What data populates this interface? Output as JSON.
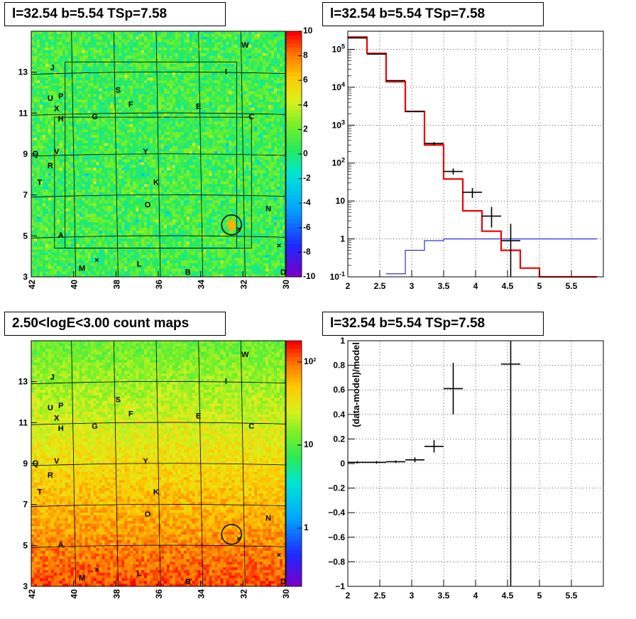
{
  "panels": {
    "tl_title": "l=32.54 b=5.54 TSp=7.58",
    "tr_title": "l=32.54 b=5.54 TSp=7.58",
    "bl_title": "2.50<logE<3.00 count maps",
    "br_title": "l=32.54 b=5.54 TSp=7.58"
  },
  "chart_data": [
    {
      "type": "heatmap",
      "name": "residual_map",
      "x_ticks": [
        "42",
        "40",
        "38",
        "36",
        "34",
        "32",
        "30"
      ],
      "y_ticks": [
        "3",
        "5",
        "7",
        "9",
        "11",
        "13"
      ],
      "xlim": [
        42,
        30
      ],
      "ylim": [
        3,
        15
      ],
      "colorbar_ticks": [
        "10",
        "8",
        "6",
        "4",
        "2",
        "0",
        "-2",
        "-4",
        "-6",
        "-8",
        "-10"
      ],
      "colorbar_range": [
        -10,
        10
      ],
      "sources": [
        {
          "label": "J",
          "l": 41.0,
          "b": 13.1
        },
        {
          "label": "W",
          "l": 31.9,
          "b": 14.2
        },
        {
          "label": "I",
          "l": 32.8,
          "b": 12.9
        },
        {
          "label": "S",
          "l": 37.9,
          "b": 12.0
        },
        {
          "label": "U",
          "l": 41.1,
          "b": 11.6
        },
        {
          "label": "P",
          "l": 40.6,
          "b": 11.7
        },
        {
          "label": "X",
          "l": 40.8,
          "b": 11.1
        },
        {
          "label": "F",
          "l": 37.3,
          "b": 11.3
        },
        {
          "label": "E",
          "l": 34.1,
          "b": 11.2
        },
        {
          "label": "H",
          "l": 40.6,
          "b": 10.6
        },
        {
          "label": "G",
          "l": 39.0,
          "b": 10.7
        },
        {
          "label": "C",
          "l": 31.6,
          "b": 10.7
        },
        {
          "label": "Q",
          "l": 41.8,
          "b": 8.9
        },
        {
          "label": "V",
          "l": 40.8,
          "b": 9.0
        },
        {
          "label": "Y",
          "l": 36.6,
          "b": 9.0
        },
        {
          "label": "R",
          "l": 41.1,
          "b": 8.3
        },
        {
          "label": "T",
          "l": 41.6,
          "b": 7.5
        },
        {
          "label": "K",
          "l": 36.1,
          "b": 7.5
        },
        {
          "label": "O",
          "l": 36.5,
          "b": 6.4
        },
        {
          "label": "N",
          "l": 30.8,
          "b": 6.2
        },
        {
          "label": "A",
          "l": 40.6,
          "b": 4.9
        },
        {
          "label": "M",
          "l": 39.6,
          "b": 3.3
        },
        {
          "label": "L",
          "l": 36.9,
          "b": 3.5
        },
        {
          "label": "B",
          "l": 34.6,
          "b": 3.1
        },
        {
          "label": "D",
          "l": 30.1,
          "b": 3.1
        }
      ],
      "circle": {
        "l": 32.54,
        "b": 5.54
      }
    },
    {
      "type": "line",
      "name": "spectrum",
      "log_y": true,
      "xlim": [
        2,
        6
      ],
      "ylim": [
        0.1,
        300000
      ],
      "x_ticks": [
        "2",
        "2.5",
        "3",
        "3.5",
        "4",
        "4.5",
        "5",
        "5.5"
      ],
      "y_ticks": [
        "10^-1",
        "1",
        "10",
        "10^2",
        "10^3",
        "10^4",
        "10^5"
      ],
      "data_points": [
        {
          "x": 2.15,
          "y": 200000,
          "xerr": 0.15
        },
        {
          "x": 2.45,
          "y": 75000,
          "xerr": 0.15
        },
        {
          "x": 2.75,
          "y": 15000,
          "xerr": 0.15
        },
        {
          "x": 3.05,
          "y": 2300,
          "xerr": 0.15
        },
        {
          "x": 3.35,
          "y": 330,
          "xerr": 0.15,
          "ylo": 300,
          "yhi": 360
        },
        {
          "x": 3.65,
          "y": 60,
          "xerr": 0.15,
          "ylo": 50,
          "yhi": 72
        },
        {
          "x": 3.95,
          "y": 17,
          "xerr": 0.15,
          "ylo": 12,
          "yhi": 22
        },
        {
          "x": 4.25,
          "y": 4,
          "xerr": 0.15,
          "ylo": 2,
          "yhi": 7
        },
        {
          "x": 4.55,
          "y": 0.9,
          "xerr": 0.15,
          "ylo": 0.1,
          "yhi": 2.5
        }
      ],
      "model_red_steps": [
        {
          "x0": 2.0,
          "x1": 2.3,
          "y": 210000
        },
        {
          "x0": 2.3,
          "x1": 2.6,
          "y": 78000
        },
        {
          "x0": 2.6,
          "x1": 2.9,
          "y": 14000
        },
        {
          "x0": 2.9,
          "x1": 3.2,
          "y": 2300
        },
        {
          "x0": 3.2,
          "x1": 3.5,
          "y": 300
        },
        {
          "x0": 3.5,
          "x1": 3.8,
          "y": 38
        },
        {
          "x0": 3.8,
          "x1": 4.1,
          "y": 5.5
        },
        {
          "x0": 4.1,
          "x1": 4.4,
          "y": 1.6
        },
        {
          "x0": 4.4,
          "x1": 4.7,
          "y": 0.5
        },
        {
          "x0": 4.7,
          "x1": 5.0,
          "y": 0.17
        },
        {
          "x0": 5.0,
          "x1": 5.9,
          "y": 0.1
        }
      ],
      "model_blue_steps": [
        {
          "x0": 2.6,
          "x1": 2.9,
          "y": 0.12
        },
        {
          "x0": 2.9,
          "x1": 3.2,
          "y": 0.5
        },
        {
          "x0": 3.2,
          "x1": 3.5,
          "y": 0.9
        },
        {
          "x0": 3.5,
          "x1": 5.9,
          "y": 1.0
        }
      ]
    },
    {
      "type": "heatmap",
      "name": "count_map",
      "x_ticks": [
        "42",
        "40",
        "38",
        "36",
        "34",
        "32",
        "30"
      ],
      "y_ticks": [
        "3",
        "5",
        "7",
        "9",
        "11",
        "13"
      ],
      "xlim": [
        42,
        30
      ],
      "ylim": [
        3,
        15
      ],
      "colorbar_ticks": [
        "10^2",
        "10",
        "1"
      ],
      "colorbar_log": true
    },
    {
      "type": "scatter",
      "name": "residual_ratio",
      "xlim": [
        2,
        6
      ],
      "ylim": [
        -1,
        1
      ],
      "x_ticks": [
        "2",
        "2.5",
        "3",
        "3.5",
        "4",
        "4.5",
        "5",
        "5.5"
      ],
      "y_ticks": [
        "1",
        "0.8",
        "0.6",
        "0.4",
        "0.2",
        "0",
        "−0.2",
        "−0.4",
        "−0.6",
        "−0.8",
        "−1"
      ],
      "ylabel": "(data-model)/model",
      "points": [
        {
          "x": 2.15,
          "y": 0.01,
          "xerr": 0.15,
          "yerr": 0.01
        },
        {
          "x": 2.45,
          "y": 0.01,
          "xerr": 0.15,
          "yerr": 0.01
        },
        {
          "x": 2.75,
          "y": 0.015,
          "xerr": 0.15,
          "yerr": 0.01
        },
        {
          "x": 3.05,
          "y": 0.03,
          "xerr": 0.15,
          "yerr": 0.02
        },
        {
          "x": 3.35,
          "y": 0.14,
          "xerr": 0.15,
          "yerr": 0.05
        },
        {
          "x": 3.65,
          "y": 0.61,
          "xerr": 0.15,
          "yerr": 0.21
        },
        {
          "x": 4.55,
          "y": 0.81,
          "xerr": 0.15,
          "yerr": 1.9
        }
      ]
    }
  ]
}
